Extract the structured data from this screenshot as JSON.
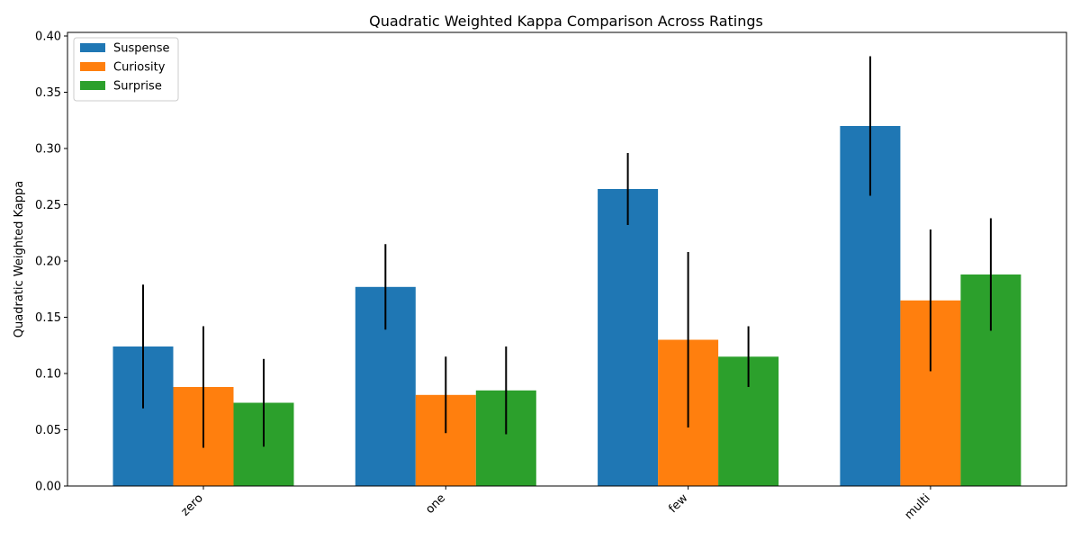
{
  "chart_data": {
    "type": "bar",
    "title": "Quadratic Weighted Kappa Comparison Across Ratings",
    "xlabel": "",
    "ylabel": "Quadratic Weighted Kappa",
    "categories": [
      "zero",
      "one",
      "few",
      "multi"
    ],
    "ylim": [
      0,
      0.4
    ],
    "yticks": [
      0.0,
      0.05,
      0.1,
      0.15,
      0.2,
      0.25,
      0.3,
      0.35,
      0.4
    ],
    "grid": false,
    "legend_position": "top-left",
    "series": [
      {
        "name": "Suspense",
        "color": "#1f77b4",
        "values": [
          0.124,
          0.177,
          0.264,
          0.32
        ],
        "errors": [
          0.055,
          0.038,
          0.032,
          0.062
        ]
      },
      {
        "name": "Curiosity",
        "color": "#ff7f0e",
        "values": [
          0.088,
          0.081,
          0.13,
          0.165
        ],
        "errors": [
          0.054,
          0.034,
          0.078,
          0.063
        ]
      },
      {
        "name": "Surprise",
        "color": "#2ca02c",
        "values": [
          0.074,
          0.085,
          0.115,
          0.188
        ],
        "errors": [
          0.039,
          0.039,
          0.027,
          0.05
        ]
      }
    ]
  }
}
